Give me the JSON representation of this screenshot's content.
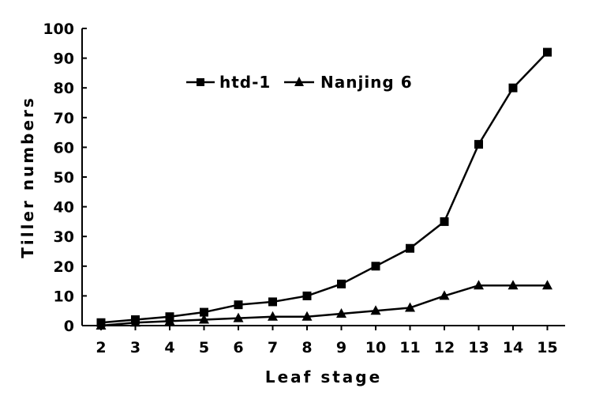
{
  "chart_data": {
    "type": "line",
    "title": "",
    "xlabel": "Leaf stage",
    "ylabel": "Tiller numbers",
    "x": [
      2,
      3,
      4,
      5,
      6,
      7,
      8,
      9,
      10,
      11,
      12,
      13,
      14,
      15
    ],
    "ylim": [
      0,
      100
    ],
    "yticks": [
      0,
      10,
      20,
      30,
      40,
      50,
      60,
      70,
      80,
      90,
      100
    ],
    "grid": false,
    "legend_position": "top-center",
    "series": [
      {
        "name": "htd-1",
        "marker": "square",
        "color": "#000000",
        "values": [
          1,
          2,
          3,
          4.5,
          7,
          8,
          10,
          14,
          20,
          26,
          35,
          61,
          80,
          92
        ]
      },
      {
        "name": "Nanjing 6",
        "marker": "triangle",
        "color": "#000000",
        "values": [
          0,
          1,
          1.5,
          2,
          2.5,
          3,
          3,
          4,
          5,
          6,
          10,
          13.5,
          13.5,
          13.5
        ]
      }
    ]
  }
}
